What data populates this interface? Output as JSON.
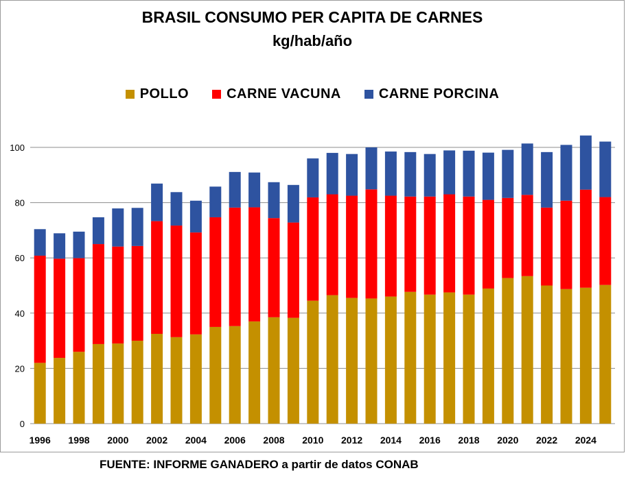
{
  "chart_data": {
    "type": "bar",
    "stacked": true,
    "title": "BRASIL CONSUMO PER CAPITA DE CARNES",
    "subtitle": "kg/hab/año",
    "legend_position": "top",
    "grid": true,
    "ylim": [
      0,
      100
    ],
    "yticks": [
      0,
      20,
      40,
      60,
      80,
      100
    ],
    "xtick_labels": [
      "1996",
      "1998",
      "2000",
      "2002",
      "2004",
      "2006",
      "2008",
      "2010",
      "2012",
      "2014",
      "2016",
      "2018",
      "2020",
      "2022",
      "2024"
    ],
    "categories": [
      "1996",
      "1997",
      "1998",
      "1999",
      "2000",
      "2001",
      "2002",
      "2003",
      "2004",
      "2005",
      "2006",
      "2007",
      "2008",
      "2009",
      "2010",
      "2011",
      "2012",
      "2013",
      "2014",
      "2015",
      "2016",
      "2017",
      "2018",
      "2019",
      "2020",
      "2021",
      "2022",
      "2023",
      "2024",
      "2025"
    ],
    "series": [
      {
        "name": "POLLO",
        "color": "#c49000",
        "values": [
          22.0,
          23.8,
          26.0,
          28.8,
          29.0,
          30.0,
          32.5,
          31.3,
          32.3,
          35.0,
          35.3,
          37.0,
          38.5,
          38.3,
          44.5,
          46.5,
          45.5,
          45.3,
          46.0,
          47.7,
          46.7,
          47.5,
          46.7,
          48.9,
          52.7,
          53.4,
          50.0,
          48.7,
          49.2,
          50.2
        ]
      },
      {
        "name": "CARNE VACUNA",
        "color": "#ff0000",
        "values": [
          38.8,
          35.9,
          33.9,
          36.2,
          35.1,
          34.3,
          40.8,
          40.4,
          36.9,
          39.7,
          42.9,
          41.3,
          35.9,
          34.5,
          37.4,
          36.5,
          37.0,
          39.5,
          36.5,
          34.5,
          35.5,
          35.5,
          35.5,
          32.1,
          29.0,
          29.4,
          28.2,
          32.0,
          35.5,
          31.8
        ]
      },
      {
        "name": "CARNE PORCINA",
        "color": "#2e53a0",
        "values": [
          9.6,
          9.2,
          9.6,
          9.7,
          13.8,
          13.8,
          13.6,
          12.1,
          11.5,
          11.1,
          12.9,
          12.6,
          13.0,
          13.6,
          14.1,
          15.0,
          15.1,
          15.2,
          16.0,
          16.1,
          15.4,
          15.9,
          16.6,
          17.1,
          17.4,
          18.6,
          20.1,
          20.2,
          19.6,
          20.1
        ]
      }
    ],
    "source": "FUENTE: INFORME GANADERO a partir de datos CONAB"
  }
}
